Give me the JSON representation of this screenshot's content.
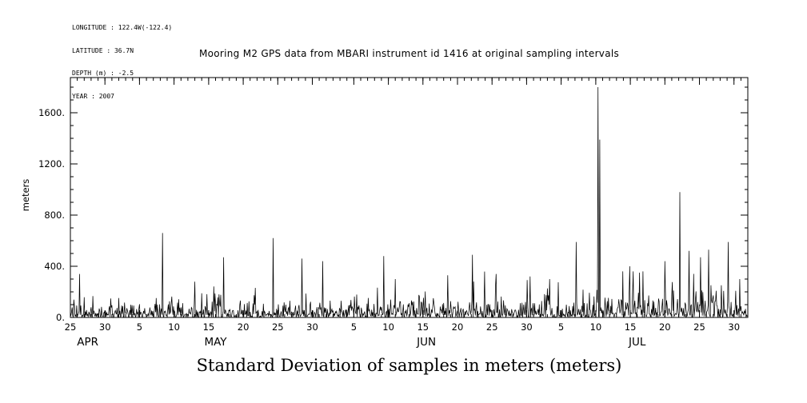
{
  "header": {
    "longitude": "LONGITUDE : 122.4W(-122.4)",
    "latitude": "LATITUDE : 36.7N",
    "depth": "DEPTH (m) : -2.5",
    "year": "YEAR : 2007"
  },
  "chart_data": {
    "type": "line",
    "title": "Mooring M2 GPS data from MBARI instrument id 1416 at original sampling intervals",
    "caption": "Standard Deviation of samples in meters (meters)",
    "ylabel": "meters",
    "xlabel": "",
    "ylim": [
      0,
      1875
    ],
    "grid": false,
    "legend": false,
    "axis_color": "#000000",
    "line_color": "#000000",
    "background_color": "#ffffff",
    "y_ticks": [
      {
        "value": 0,
        "label": "0."
      },
      {
        "value": 400,
        "label": "400."
      },
      {
        "value": 800,
        "label": "800."
      },
      {
        "value": 1200,
        "label": "1200."
      },
      {
        "value": 1600,
        "label": "1600."
      }
    ],
    "y_minor_step": 100,
    "x_axis": {
      "start_date": "2007-04-25",
      "end_date": "2007-08-01",
      "total_days": 98,
      "ticks": [
        {
          "day": 0,
          "label": "25"
        },
        {
          "day": 5,
          "label": "30"
        },
        {
          "day": 10,
          "label": "5"
        },
        {
          "day": 15,
          "label": "10"
        },
        {
          "day": 20,
          "label": "15"
        },
        {
          "day": 25,
          "label": "20"
        },
        {
          "day": 30,
          "label": "25"
        },
        {
          "day": 35,
          "label": "30"
        },
        {
          "day": 41,
          "label": "5"
        },
        {
          "day": 46,
          "label": "10"
        },
        {
          "day": 51,
          "label": "15"
        },
        {
          "day": 56,
          "label": "20"
        },
        {
          "day": 61,
          "label": "25"
        },
        {
          "day": 66,
          "label": "30"
        },
        {
          "day": 71,
          "label": "5"
        },
        {
          "day": 76,
          "label": "10"
        },
        {
          "day": 81,
          "label": "15"
        },
        {
          "day": 86,
          "label": "20"
        },
        {
          "day": 91,
          "label": "25"
        },
        {
          "day": 96,
          "label": "30"
        }
      ],
      "month_labels": [
        {
          "day": 2.5,
          "label": "APR"
        },
        {
          "day": 21,
          "label": "MAY"
        },
        {
          "day": 51.5,
          "label": "JUN"
        },
        {
          "day": 82,
          "label": "JUL"
        }
      ]
    },
    "series_description": "GPS position standard deviation per original sampling interval; dense noisy baseline 0-350 m with isolated large spikes",
    "peaks": [
      {
        "date": "2007-04-26",
        "day": 1.3,
        "value": 340
      },
      {
        "date": "2007-05-08",
        "day": 13.3,
        "value": 660
      },
      {
        "date": "2007-05-13",
        "day": 18.0,
        "value": 280
      },
      {
        "date": "2007-05-17",
        "day": 22.2,
        "value": 470
      },
      {
        "date": "2007-05-24",
        "day": 29.3,
        "value": 620
      },
      {
        "date": "2007-05-28",
        "day": 33.5,
        "value": 460
      },
      {
        "date": "2007-06-01",
        "day": 36.5,
        "value": 440
      },
      {
        "date": "2007-06-09",
        "day": 45.3,
        "value": 480
      },
      {
        "date": "2007-06-11",
        "day": 47.0,
        "value": 300
      },
      {
        "date": "2007-06-18",
        "day": 54.6,
        "value": 330
      },
      {
        "date": "2007-06-22",
        "day": 58.2,
        "value": 490
      },
      {
        "date": "2007-06-25",
        "day": 61.6,
        "value": 340
      },
      {
        "date": "2007-06-30",
        "day": 66.5,
        "value": 320
      },
      {
        "date": "2007-07-03",
        "day": 69.3,
        "value": 300
      },
      {
        "date": "2007-07-07",
        "day": 73.2,
        "value": 590
      },
      {
        "date": "2007-07-10",
        "day": 76.3,
        "value": 1800
      },
      {
        "date": "2007-07-10",
        "day": 76.6,
        "value": 1390
      },
      {
        "date": "2007-07-15",
        "day": 80.9,
        "value": 400
      },
      {
        "date": "2007-07-16",
        "day": 82.3,
        "value": 350
      },
      {
        "date": "2007-07-20",
        "day": 86.0,
        "value": 440
      },
      {
        "date": "2007-07-22",
        "day": 88.2,
        "value": 980
      },
      {
        "date": "2007-07-23",
        "day": 89.5,
        "value": 520
      },
      {
        "date": "2007-07-25",
        "day": 91.2,
        "value": 470
      },
      {
        "date": "2007-07-26",
        "day": 92.3,
        "value": 530
      },
      {
        "date": "2007-07-29",
        "day": 95.2,
        "value": 590
      },
      {
        "date": "2007-07-31",
        "day": 96.8,
        "value": 300
      }
    ],
    "noise": {
      "seed": 20070425,
      "samples_per_day": 12,
      "exp_scale": 40,
      "cap": 360
    },
    "noise_envelope": [
      {
        "from": 0,
        "to": 40,
        "mult": 1.0
      },
      {
        "from": 40,
        "to": 70,
        "mult": 1.25
      },
      {
        "from": 70,
        "to": 79,
        "mult": 1.1
      },
      {
        "from": 79,
        "to": 98,
        "mult": 1.7
      }
    ]
  }
}
